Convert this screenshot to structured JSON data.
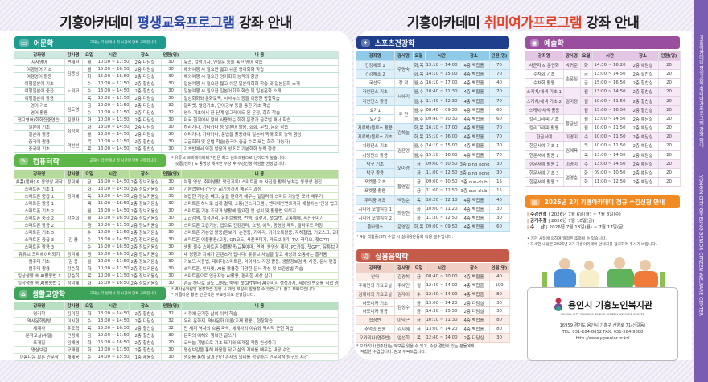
{
  "left_title": {
    "prefix": "기흥아카데미 ",
    "highlight": "평생교육프로그램",
    "suffix": " 강좌 안내"
  },
  "right_title": {
    "prefix": "기흥아카데미 ",
    "highlight": "취미여가프로그램",
    "suffix": " 강좌 안내"
  },
  "ribbon": {
    "ko": "기흥아카데미 평생교육·취미여가프로그램 강좌 안내",
    "en": "YONGIN CITY GIHEUNG SENIOR CITIZEN WELFARE CENTER"
  },
  "headers_left": [
    "강좌명",
    "강사명",
    "요일",
    "시간",
    "장소",
    "인원(명)",
    "내 용"
  ],
  "headers_right": [
    "강좌명",
    "강사명",
    "요일",
    "시간",
    "장소",
    "인원(명)"
  ],
  "colors": {
    "language": "#1f9a8e",
    "computer": "#5cb547",
    "culture": "#3da35a",
    "sports": "#1f3f8c",
    "music": "#c45a4a",
    "art": "#9a4f9e",
    "register": "#f08a22",
    "ribbon": "#7a5db0"
  },
  "sections": {
    "language": {
      "title": "어문학",
      "icon": "book-icon",
      "sub": "교재는 각 반에서 첫 시간에 단체 구매합니다.",
      "rows": [
        [
          "시사영어",
          "변재환",
          "월",
          "10:00 ~ 11:50",
          "2층 다담실",
          "30",
          "뉴스, 칼럼기사, 연설문 등을 통한 영어 학습"
        ],
        [
          "여행영어 기초",
          "김종남",
          "월",
          "15:00 ~ 16:50",
          "2층 다담실",
          "30",
          "해외여행 시 필요한 짧고 쉬운 영어회화 학습"
        ],
        [
          "여행영어 활용",
          null,
          "화",
          "15:00 ~ 16:50",
          "2층 다담실",
          "30",
          "해외여행 시 필요한 영어회화 능력의 향상"
        ],
        [
          "여행일본어 기초",
          "노리코",
          "수",
          "10:00 ~ 11:50",
          "2층 힐찬실",
          "30",
          "일본여행 시 필요한 짧고 쉬운 일본어회화 학습 및 일본문화 소개"
        ],
        [
          "여행일본어 중급",
          null,
          "수",
          "13:00 ~ 14:50",
          "2층 힐찬실",
          "30",
          "일본여행 시 필요한 일본어회화 학습 및 일본문화 소개"
        ],
        [
          "여행일본어 활용",
          null,
          "목",
          "10:00 ~ 11:50",
          "2층 다담실",
          "30",
          "일상회화와 문화토픽, 시사뉴스 등을 이용한 종합학습"
        ],
        [
          "영어 기초",
          "김도영",
          "금",
          "10:00 ~ 11:50",
          "2층 다담실",
          "32",
          "알파벳, 발음기호, 단어공부 등을 통한 기초 학습"
        ],
        [
          "영어 활용",
          null,
          "수",
          "10:00 ~ 11:50",
          "2층 다담실",
          "32",
          "영어 기초에서 한 단계 업그레이드 된 문장, 회화 학습"
        ],
        [
          "현지영어(회화집중연습)",
          "김경자",
          "화",
          "10:00 ~ 11:50",
          "2층 다담실",
          "30",
          "미국 현지에서 많이 사용하는 회화 문장과 글로벌 매너 학습"
        ],
        [
          "일본어 기초",
          "최상숙",
          "화",
          "13:00 ~ 14:50",
          "2층 다담실",
          "30",
          "히라가나, 가타카나 등 일본어 발음, 회화, 문법, 문화 학습"
        ],
        [
          "일본어 활용",
          null,
          "월",
          "13:00 ~ 14:50",
          "2층 다담실",
          "30",
          "히라가나, 가타카나, 문법을 활용하여 일본어 독해·회화 능력 향상"
        ],
        [
          "중국어 활용",
          "곽선선",
          "목",
          "10:00 ~ 11:50",
          "2층 힐찬실",
          "30",
          "고급회화 및 문법 학습(중국어 중급 수료 또는 회화 가능자)"
        ],
        [
          "중국어 기초",
          null,
          "목",
          "13:00 ~ 14:50",
          "2층 힐찬실",
          "30",
          "기초반에서 익힌 발음과 성조로 기본회화 능력 향상"
        ]
      ]
    },
    "computer": {
      "title": "컴퓨터학",
      "icon": "pencil-icon",
      "sub": "교재는 각 반에서 첫 시간에 단체 구매합니다.",
      "notes": [
        "* 유튜브 크리에이터되기반은 최고 심화과정으로 난이도가 높습니다.",
        "숏폼(캔바) & 동영상 제작반 수강 후 수강신청 하심을 권장합니다."
      ],
      "rows": [
        [
          "숏폼(캔바) & 동영상 제작",
          "정미혜",
          "금",
          "13:00 ~ 14:50",
          "2층 정보키움실",
          "30",
          "여행 영상, 취미생활, 맛집기록! 스마트폰 속 사진을 활력 넘치는 동영상 편집"
        ],
        [
          "스마트폰 기초 1",
          "정미혜",
          "화",
          "13:00 ~ 14:50",
          "2층 정보키움실",
          "30",
          "기본앱부터 간단한 AI기능까지 배우는 과정"
        ],
        [
          "스마트폰 중급 1",
          null,
          "목",
          "13:00 ~ 14:50",
          "2층 정보키움실",
          "30",
          "복잡한 기능은 빼고, 삶을 편하게 해주는 일잘러의 스마트 기능만 모아 배우기"
        ],
        [
          "스마트폰 활용 1",
          null,
          "목",
          "15:00 ~ 16:50",
          "2층 정보키움실",
          "30",
          "스마트폰 하나로 쉽게 결제, 소통(인스타그램), 엔터테인먼트까지 해결하는 '인생 업그레이드' 경험"
        ],
        [
          "스마트폰 기초 2",
          "강순희",
          "월",
          "13:00 ~ 14:50",
          "2층 정보키움실",
          "30",
          "스마트폰 기본 조작과 생활에 필요한 앱 설치 및 활용법 익히기"
        ],
        [
          "스마트폰 중급 2",
          null,
          "월",
          "15:00 ~ 16:50",
          "2층 정보키움실",
          "30",
          "고급검색, 일정관리, 유튜브활용, 번역, 길찾기, 챗GPT, 교통예매, 사진꾸미기"
        ],
        [
          "스마트폰 활용 2",
          null,
          "금",
          "10:00 ~ 11:50",
          "2층 정보키움실",
          "30",
          "스마트폰 고급기능, 앱으로 건강관리, 쇼핑, 예약, 동영상 제작, 클라우드 저장"
        ],
        [
          "스마트폰 기초 3",
          "김 용",
          "수",
          "10:00 ~ 11:50",
          "2층 정보키움실",
          "30",
          "스마트폰 기본앱 활용(돋보기, 손전등, 카메라, 카카오톡활용, 지하철앱, 키오스크, 교통)"
        ],
        [
          "스마트폰 중급 3",
          null,
          "수",
          "13:00 ~ 14:50",
          "2층 정보키움실",
          "30",
          "스마트폰 어플활용(교통, QR코드, 사진꾸미기, 카드보내기, TV, 라디오, 챗GPT)"
        ],
        [
          "스마트폰 활용 3",
          null,
          "수",
          "15:00 ~ 16:50",
          "2층 정보키움실",
          "30",
          "생활 필수 스마트폰 어플활용(교통예매, 면역, 동영상 제작, PC카톡, 챗GPT, 유튜브 제작)"
        ],
        [
          "유튜브 크리에이터되기",
          "정미혜",
          "금",
          "15:00 ~ 16:50",
          "2층 정보키움실",
          "30",
          "내 경험과 지혜가 콘텐츠가 됩니다! 유튜브 채널을 열고 세상과 소통하는 즐거움"
        ],
        [
          "컴퓨터 기초",
          "김 용",
          "월",
          "10:00 ~ 11:50",
          "2층 정보키움실",
          "30",
          "키보드 사용법, 데이터(스마트폰, 마이박스)저장 활용, 생활정보검색, 사진, 문서 편집"
        ],
        [
          "컴퓨터 활용",
          "강순희",
          "화",
          "10:00 ~ 11:50",
          "2층 정보키움실",
          "30",
          "스마트폰, 인터넷, AI를 활용한 다양한 문서 작성 및 보관방법 학습"
        ],
        [
          "일상생활 속 AI활용법 1",
          "강순희",
          "목",
          "10:00 ~ 11:50",
          "2층 정보키움실",
          "30",
          "스마트폰으로 인공지능 AI활용, 편리한 세상 살기"
        ],
        [
          "일상생활 속 AI활용법 2",
          "정미혜",
          "화",
          "15:00 ~ 16:50",
          "2층 정보키움실",
          "30",
          "손글 하나로 글도 그림도 뚝딱! 챗GPT부터 AI이미지 생성까지, 세상의 변화를 직접 경험"
        ]
      ]
    },
    "culture": {
      "title": "생활교양학",
      "icon": "graduation-cap-icon",
      "sub": "교재는 각 반에서 첫 시간에 단체 구매합니다.",
      "notes": [
        "* 역사문화탐방 현장학습 진행 시 개인 부담이 발생할 수 있습니다. 참고 부탁드립니다.",
        "* 아름다운 황혼 인문학은 무료강좌로 운영됩니다."
      ],
      "rows": [
        [
          "명리학",
          "김미헌",
          "화",
          "13:00 ~ 14:50",
          "2층 힐찬실",
          "32",
          "사주에 근거한 삶의 이치 학습"
        ],
        [
          "역사문화탐방",
          "이시현",
          "수",
          "13:00 ~ 14:50",
          "2층 다담실",
          "32",
          "우리 문화재, 역사문화 이론(교재 활용), 현장학습"
        ],
        [
          "세계사",
          "우도혁",
          "목",
          "15:00 ~ 16:50",
          "2층 힐찬실",
          "32",
          "전 세계 역사의 흐름 파악, 세계사의 이슈와 역사적 근현 학습"
        ],
        [
          "문학교실(수필)",
          "민정애",
          "금",
          "10:00 ~ 11:50",
          "2층 힐찬실",
          "30",
          "문학의 이해와 행복한 글쓰기"
        ],
        [
          "뜨개질",
          "임해영",
          "화",
          "15:00 ~ 16:50",
          "2층 힐찬실",
          "20",
          "코바늘 기법으로 기초 뜨기와 뜨개질 작품 완성하기"
        ],
        [
          "명심보감",
          "구재원",
          "화",
          "10:00 ~ 11:50",
          "2층 힐찬실",
          "30",
          "명심보감을 통해 마음을 닦고 삶의 지혜를 배우는 내공 수업"
        ],
        [
          "아름다운 황혼 인문학",
          "채세웅",
          "수",
          "14:00 ~ 15:50",
          "1층 세움실",
          "30",
          "영화를 통해 삶과 인간 존재의 의미를 성찰하는 인문학적 탐구의 시간"
        ]
      ]
    },
    "sports": {
      "title": "스포츠건강학",
      "icon": "runner-icon",
      "notes": [
        "* 4층 백합홀(3F) 수업 시 실내용운동화 착용 필수입니다."
      ],
      "rows": [
        [
          "건강체조 1",
          "주명숙",
          "화,목",
          "13:10 ~ 14:00",
          "4층 백합홀",
          "70"
        ],
        [
          "건강체조 2",
          null,
          "화,목",
          "14:10 ~ 15:00",
          "4층 백합홀",
          "70"
        ],
        [
          "국선도",
          "장 덕",
          "월,수",
          "16:10 ~ 17:00",
          "4층 백합홀",
          "40"
        ],
        [
          "라인댄스 기초",
          "서혜리",
          "월,수",
          "10:40 ~ 11:30",
          "4층 백합홀",
          "70"
        ],
        [
          "라인댄스 활용",
          null,
          "월,수",
          "11:40 ~ 12:30",
          "4층 백합홀",
          "70"
        ],
        [
          "요가1",
          "두 진",
          "월,수",
          "08:40 ~ 09:30",
          "4층 백합홀",
          "60"
        ],
        [
          "요가2",
          null,
          "월,수",
          "09:40 ~ 10:30",
          "4층 백합홀",
          "60"
        ],
        [
          "지루박/블루스 활용",
          "김하늘",
          "화,목",
          "16:10 ~ 17:00",
          "4층 백합홀",
          "70"
        ],
        [
          "지루박/블루스 기초",
          null,
          "화,목",
          "15:10 ~ 16:00",
          "4층 백합홀",
          "70"
        ],
        [
          "차밍댄스 기초",
          "김은영",
          "월,수",
          "14:10 ~ 15:00",
          "4층 백합홀",
          "70"
        ],
        [
          "차밍댄스 활용",
          null,
          "월,수",
          "15:10 ~ 16:00",
          "4층 백합홀",
          "70"
        ],
        [
          "탁구 기초",
          "오미경",
          "금",
          "09:00 ~ 10:50",
          "3층 ping pong",
          "30"
        ],
        [
          "탁구 활용",
          null,
          "금",
          "11:00 ~ 12:50",
          "3층 ping pong",
          "30"
        ],
        [
          "포켓볼 기초",
          "황영일",
          "금",
          "09:00 ~ 10:50",
          "3층 cue-club",
          "15"
        ],
        [
          "포켓볼 활용",
          null,
          "금",
          "11:00 ~ 12:50",
          "3층 cue-club",
          "15"
        ],
        [
          "우리춤 체조",
          "백정순",
          "목",
          "10:20 ~ 12:10",
          "4층 백합홀",
          "40"
        ],
        [
          "시니어 모델워킹 1",
          "최정현",
          "화",
          "10:00 ~ 11:20",
          "4층 백합홀",
          "30"
        ],
        [
          "시니어 모델워킹 2",
          null,
          "화",
          "11:30 ~ 12:50",
          "4층 백합홀",
          "30"
        ],
        [
          "줌바댄스",
          "운영일",
          "화,목",
          "09:00 ~ 09:50",
          "4층 백합홀",
          "60"
        ]
      ]
    },
    "music": {
      "title": "실용음악학",
      "icon": "music-note-icon",
      "notes": [
        "* 오카리나(연주반)는 악보를 읽을 수 있고, 수강 경험이 있는 분들에게",
        "적합한 수업입니다. 참고 부탁드립니다."
      ],
      "rows": [
        [
          "난타",
          "김경히",
          "금",
          "08:40 ~ 10:00",
          "4층 백합홀",
          "40"
        ],
        [
          "주혜민의 가요교실",
          "주혜민",
          "월",
          "12:40 ~ 14:00",
          "4층 백합홀",
          "100"
        ],
        [
          "김제이의 가요교실",
          "김제이",
          "수",
          "12:40 ~ 14:00",
          "4층 백합홀",
          "80"
        ],
        [
          "하모니카 기초",
          "김성수",
          "금",
          "13:00 ~ 14:20",
          "2층 다담실",
          "30"
        ],
        [
          "하모니카 활용",
          null,
          "금",
          "14:30 ~ 15:50",
          "2층 다담실",
          "30"
        ],
        [
          "합창반",
          "이덕근",
          "금",
          "10:10 ~ 11:30",
          "4층 백합홀",
          "80"
        ],
        [
          "추억의 팝송",
          "김지혜",
          "금",
          "13:00 ~ 14:20",
          "4층 백합홀",
          "80"
        ],
        [
          "오카리나(연주반)",
          "엄선희",
          "목",
          "12:40 ~ 14:00",
          "2층 다담실",
          "30"
        ]
      ]
    },
    "art": {
      "title": "예술학",
      "icon": "palette-icon",
      "rows": [
        [
          "사군자 & 문인화",
          "박귀준",
          "화",
          "14:30 ~ 16:20",
          "2층 예담실",
          "20"
        ],
        [
          "수채화 기초",
          "손문심",
          "금",
          "13:00 ~ 14:50",
          "2층 힐찬실",
          "20"
        ],
        [
          "수채화 활용",
          null,
          "금",
          "15:00 ~ 16:50",
          "2층 힐찬실",
          "20"
        ],
        [
          "스케치/채색 기초 1",
          "김미정",
          "월",
          "13:00 ~ 14:50",
          "2층 힐찬실",
          "20"
        ],
        [
          "스케치/채색 기초 2",
          null,
          "월",
          "10:00 ~ 11:50",
          "2층 힐찬실",
          "20"
        ],
        [
          "스케치/채색 활용",
          null,
          "월",
          "15:00 ~ 16:50",
          "2층 힐찬실",
          "20"
        ],
        [
          "캘리그라피 기초",
          "황금선",
          "월",
          "13:00 ~ 14:50",
          "2층 예담실",
          "20"
        ],
        [
          "캘리그라피 활용",
          null,
          "월",
          "10:00 ~ 11:50",
          "2층 예담실",
          "20"
        ],
        [
          "한글서예",
          "이명미",
          "수",
          "10:00 ~ 11:50",
          "2층 예담실",
          "20"
        ],
        [
          "한문서예 기초 1",
          "김혜옥",
          "목",
          "10:00 ~ 11:50",
          "2층 예담실",
          "20"
        ],
        [
          "한문서예 활용 1",
          null,
          "목",
          "13:00 ~ 14:50",
          "2층 예담실",
          "20"
        ],
        [
          "한문서예 활용 2",
          "이명미",
          "수",
          "13:00 ~ 14:50",
          "2층 예담실",
          "20"
        ],
        [
          "한문서예 기초 3",
          "엄영순",
          "화",
          "09:00 ~ 10:50",
          "2층 예담실",
          "20"
        ],
        [
          "한문서예 활용 3",
          null,
          "화",
          "11:00 ~ 12:50",
          "2층 예담실",
          "20"
        ]
      ]
    }
  },
  "registration": {
    "title": "2026년 2기 기흥아카데미 정규 수강신청 안내",
    "items": [
      {
        "label": "수강신청",
        "value": "2026년 7월 6일(월) ~ 7월 8일(수)"
      },
      {
        "label": "공개추첨",
        "value": "2026년 7월 10일(금)"
      },
      {
        "label": "수    납",
        "value": "2026년 7월 13일(월) ~ 7월 17일(금)"
      }
    ],
    "notes": [
      "• 기관 사정에 의하여 일정은 조정될 수 있습니다.",
      "• 자세한 내용은 2026년 2기 기흥아카데미 안내지를 참고하여 주시기 바랍니다."
    ]
  },
  "center": {
    "name": "용인시 기흥노인복지관",
    "name_en": "YONGIN CITY GIHEUNG SENIOR CITIZEN WELFARE CENTER",
    "address": "16959 경기도 용인시 기흥구 산양로 71(신갈동)",
    "phone": "TEL. 031-284-8852   FAX. 031-284-9888",
    "url": "http://www.ygsenior.or.kr/"
  }
}
